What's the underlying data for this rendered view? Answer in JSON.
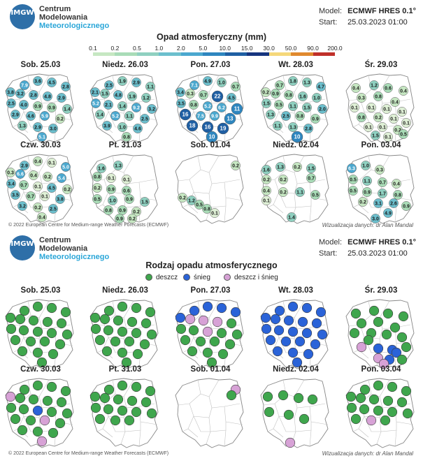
{
  "header": {
    "logo_text": "IMGW",
    "org": [
      "Centrum",
      "Modelowania",
      "Meteorologicznego"
    ],
    "model_label": "Model:",
    "model_value": "ECMWF HRES 0.1°",
    "start_label": "Start:",
    "start_value": "25.03.2023 01:00"
  },
  "footer": {
    "copyright": "© 2022 European Centre for Medium-range Weather Forecasts (ECMWF)",
    "credit": "Wizualizacja danych: dr Alan Mandal"
  },
  "chart_data": [
    {
      "type": "map",
      "title": "Opad atmosferyczny (mm)",
      "colorbar": {
        "ticks": [
          "0.1",
          "0.2",
          "0.5",
          "1.0",
          "2.0",
          "5.0",
          "10.0",
          "15.0",
          "30.0",
          "50.0",
          "90.0",
          "200.0"
        ],
        "colors": [
          "#dff0d6",
          "#c6e7c2",
          "#a9dcb7",
          "#8fd0c0",
          "#6cbfcd",
          "#4ba8cf",
          "#2e86bf",
          "#1f5fa3",
          "#17357f",
          "#f5d87a",
          "#e0892e",
          "#c0302a"
        ]
      },
      "panels": [
        {
          "date": "Sob. 25.03",
          "values": [
            "7.9",
            "3.6",
            "4.5",
            "2.8",
            "3.8",
            "3.2",
            "2.8",
            "4.8",
            "2.9",
            "2.5",
            "4.0",
            "0.9",
            "0.9",
            "1.4",
            "2.9",
            "4.6",
            "5.9",
            "0.2",
            "1.3",
            "2.9",
            "3.0",
            "5.1"
          ]
        },
        {
          "date": "Niedz. 26.03",
          "values": [
            "2.5",
            "1.9",
            "2.9",
            "1.1",
            "2.1",
            "1.5",
            "4.8",
            "1.9",
            "1.2",
            "5.2",
            "2.1",
            "1.4",
            "9.2",
            "3.2",
            "1.4",
            "5.2",
            "1.1",
            "2.5",
            "3.9",
            "1.0",
            "4.6",
            "0.8"
          ]
        },
        {
          "date": "Pon. 27.03",
          "values": [
            "7.1",
            "4.9",
            "1.0",
            "0.7",
            "3.4",
            "0.3",
            "0.7",
            "22",
            "4.5",
            "3.5",
            "0.8",
            "5.2",
            "6.2",
            "11",
            "16",
            "7.5",
            "9.9",
            "13",
            "18",
            "16",
            "19",
            "10"
          ]
        },
        {
          "date": "Wt. 28.03",
          "values": [
            "0.7",
            "1.8",
            "1.3",
            "4.7",
            "0.2",
            "0.9",
            "0.8",
            "1.6",
            "1.0",
            "1.5",
            "0.5",
            "1.1",
            "1.5",
            "2.0",
            "1.3",
            "2.5",
            "0.8",
            "0.9",
            "1.1",
            "1.3",
            "2.8",
            "10"
          ]
        },
        {
          "date": "Śr. 29.03",
          "values": [
            "0.4",
            "1.2",
            "0.6",
            "0.4",
            "0.3",
            "0.8",
            "0.4",
            "0.1",
            "0.1",
            "0.1",
            "0.1",
            "0.8",
            "0.2",
            "0.1",
            "0.1",
            "0.1",
            "0.1",
            "0.2",
            "1.5",
            "0.1",
            "0.5"
          ]
        },
        {
          "date": "Czw. 30.03",
          "values": [
            "2.9",
            "0.4",
            "0.1",
            "5.0",
            "0.3",
            "6.6",
            "0.4",
            "0.2",
            "5.4",
            "3.4",
            "0.7",
            "0.1",
            "4.5",
            "0.2",
            "3.5",
            "0.7",
            "0.1",
            "3.8",
            "3.2",
            "0.2",
            "2.5",
            "0.4"
          ]
        },
        {
          "date": "Pt. 31.03",
          "values": [
            "1.6",
            "1.3",
            "0.8",
            "0.1",
            "0.1",
            "0.2",
            "0.9",
            "0.6",
            "0.5",
            "1.0",
            "0.9",
            "1.5",
            "0.8",
            "0.9",
            "0.2",
            "0.9",
            "0.2"
          ]
        },
        {
          "date": "Sob. 01.04",
          "values": [
            "0.2",
            "0.2",
            "1.2",
            "0.5",
            "0.8",
            "0.1"
          ]
        },
        {
          "date": "Niedz. 02.04",
          "values": [
            "1.6",
            "1.3",
            "0.2",
            "1.5",
            "0.7",
            "0.2",
            "0.2",
            "0.4",
            "0.2",
            "1.1",
            "0.5",
            "0.1",
            "1.4"
          ]
        },
        {
          "date": "Pon. 03.04",
          "values": [
            "6.3",
            "1.0",
            "0.3",
            "0.5",
            "1.1",
            "0.7",
            "0.4",
            "0.5",
            "0.9",
            "1.7",
            "0.8",
            "0.2",
            "3.1",
            "2.6",
            "0.9",
            "4.9",
            "3.0"
          ]
        }
      ]
    },
    {
      "type": "map",
      "title": "Rodzaj opadu atmosferycznego",
      "legend": [
        {
          "label": "deszcz",
          "color": "#3fa64d"
        },
        {
          "label": "śnieg",
          "color": "#2a63d8"
        },
        {
          "label": "deszcz i śnieg",
          "color": "#d7a2d6"
        }
      ],
      "panels": [
        {
          "date": "Sob. 25.03",
          "categories": [
            "deszcz",
            "deszcz",
            "deszcz",
            "deszcz",
            "deszcz",
            "deszcz",
            "deszcz",
            "deszcz",
            "deszcz",
            "deszcz",
            "deszcz",
            "deszcz",
            "deszcz",
            "deszcz",
            "deszcz",
            "deszcz",
            "deszcz",
            "deszcz",
            "deszcz",
            "deszcz",
            "deszcz",
            "deszcz"
          ]
        },
        {
          "date": "Niedz. 26.03",
          "categories": [
            "deszcz",
            "deszcz",
            "deszcz",
            "deszcz",
            "deszcz",
            "deszcz",
            "deszcz",
            "deszcz",
            "deszcz",
            "deszcz",
            "deszcz",
            "deszcz",
            "deszcz",
            "deszcz",
            "deszcz",
            "deszcz",
            "deszcz",
            "deszcz",
            "deszcz",
            "deszcz",
            "deszcz",
            "deszcz"
          ]
        },
        {
          "date": "Pon. 27.03",
          "categories": [
            "śnieg",
            "śnieg",
            "śnieg",
            "śnieg",
            "śnieg",
            "deszcz i śnieg",
            "deszcz i śnieg",
            "deszcz i śnieg",
            "deszcz",
            "deszcz",
            "deszcz",
            "deszcz i śnieg",
            "deszcz",
            "deszcz",
            "deszcz",
            "deszcz",
            "deszcz",
            "deszcz",
            "deszcz",
            "deszcz",
            "deszcz",
            "deszcz"
          ]
        },
        {
          "date": "Wt. 28.03",
          "categories": [
            "śnieg",
            "śnieg",
            "śnieg",
            "śnieg",
            "śnieg",
            "śnieg",
            "śnieg",
            "śnieg",
            "śnieg",
            "śnieg",
            "śnieg",
            "śnieg",
            "śnieg",
            "śnieg",
            "śnieg",
            "śnieg",
            "śnieg",
            "śnieg",
            "śnieg",
            "śnieg",
            "śnieg",
            "śnieg"
          ]
        },
        {
          "date": "Śr. 29.03",
          "categories": [
            "deszcz",
            "deszcz",
            "deszcz",
            "deszcz",
            "deszcz",
            "deszcz",
            "deszcz",
            "deszcz",
            "deszcz",
            "deszcz",
            "deszcz",
            "deszcz i śnieg",
            "śnieg",
            "śnieg",
            "deszcz i śnieg",
            "śnieg",
            "śnieg",
            "deszcz i śnieg",
            "deszcz",
            "deszcz",
            "deszcz"
          ]
        },
        {
          "date": "Czw. 30.03",
          "categories": [
            "deszcz",
            "deszcz",
            "deszcz",
            "deszcz",
            "deszcz i śnieg",
            "deszcz",
            "deszcz",
            "deszcz",
            "deszcz",
            "deszcz",
            "deszcz",
            "śnieg",
            "deszcz",
            "deszcz",
            "deszcz",
            "deszcz",
            "deszcz i śnieg",
            "deszcz",
            "deszcz",
            "deszcz",
            "deszcz",
            "deszcz i śnieg"
          ]
        },
        {
          "date": "Pt. 31.03",
          "categories": [
            "deszcz",
            "deszcz",
            "deszcz",
            "deszcz",
            "deszcz",
            "deszcz",
            "deszcz",
            "deszcz",
            "deszcz",
            "deszcz",
            "deszcz",
            "deszcz",
            "deszcz",
            "deszcz",
            "deszcz",
            "deszcz",
            "deszcz"
          ]
        },
        {
          "date": "Sob. 01.04",
          "categories": [
            "deszcz i śnieg",
            "deszcz"
          ]
        },
        {
          "date": "Niedz. 02.04",
          "categories": [
            "deszcz",
            "deszcz",
            "deszcz",
            "deszcz",
            "deszcz",
            "deszcz",
            "deszcz",
            "deszcz i śnieg"
          ]
        },
        {
          "date": "Pon. 03.04",
          "categories": [
            "deszcz",
            "deszcz",
            "deszcz",
            "deszcz",
            "deszcz",
            "deszcz",
            "deszcz",
            "deszcz",
            "deszcz",
            "deszcz",
            "deszcz",
            "deszcz",
            "deszcz",
            "deszcz",
            "deszcz",
            "deszcz i śnieg",
            "deszcz"
          ]
        }
      ]
    }
  ]
}
